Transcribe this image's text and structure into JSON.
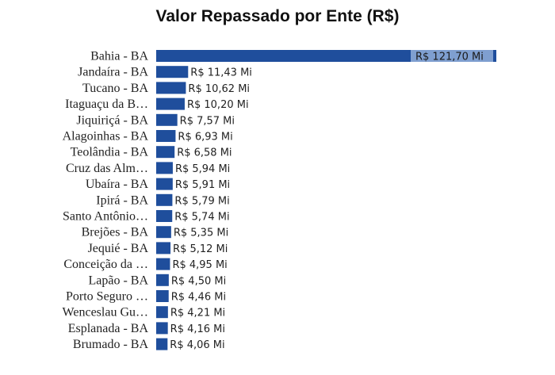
{
  "chart_data": {
    "type": "bar",
    "orientation": "horizontal",
    "title": "Valor Repassado por Ente (R$)",
    "categories": [
      "Bahia - BA",
      "Jandaíra - BA",
      "Tucano - BA",
      "Itaguaçu da B…",
      "Jiquiriçá - BA",
      "Alagoinhas - BA",
      "Teolândia - BA",
      "Cruz das Alm…",
      "Ubaíra - BA",
      "Ipirá - BA",
      "Santo Antônio…",
      "Brejões - BA",
      "Jequié - BA",
      "Conceição da …",
      "Lapão - BA",
      "Porto Seguro …",
      "Wenceslau Gu…",
      "Esplanada - BA",
      "Brumado - BA"
    ],
    "values": [
      121.7,
      11.43,
      10.62,
      10.2,
      7.57,
      6.93,
      6.58,
      5.94,
      5.91,
      5.79,
      5.74,
      5.35,
      5.12,
      4.95,
      4.5,
      4.46,
      4.21,
      4.16,
      4.06
    ],
    "value_labels": [
      "R$ 121,70 Mi",
      "R$ 11,43 Mi",
      "R$ 10,62 Mi",
      "R$ 10,20 Mi",
      "R$ 7,57 Mi",
      "R$ 6,93 Mi",
      "R$ 6,58 Mi",
      "R$ 5,94 Mi",
      "R$ 5,91 Mi",
      "R$ 5,79 Mi",
      "R$ 5,74 Mi",
      "R$ 5,35 Mi",
      "R$ 5,12 Mi",
      "R$ 4,95 Mi",
      "R$ 4,50 Mi",
      "R$ 4,46 Mi",
      "R$ 4,21 Mi",
      "R$ 4,16 Mi",
      "R$ 4,06 Mi"
    ],
    "unit": "R$ Mi",
    "bar_color": "#1f4e9c",
    "label_highlight_color": "#7f9fd0",
    "grid": false,
    "legend": "none"
  }
}
